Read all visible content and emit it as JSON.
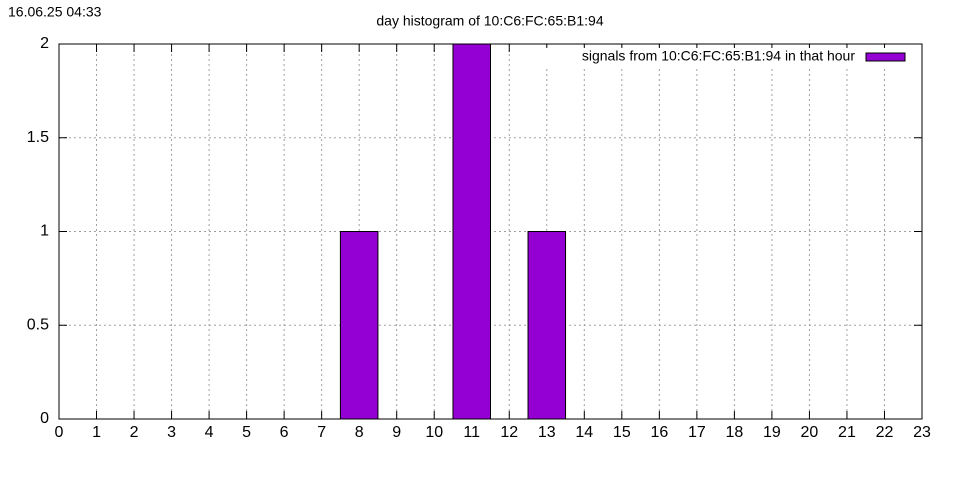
{
  "chart_data": {
    "type": "bar",
    "timestamp": "16.06.25 04:33",
    "title": "day histogram of 10:C6:FC:65:B1:94",
    "x": [
      8,
      11,
      13
    ],
    "series": [
      {
        "name": "signals from 10:C6:FC:65:B1:94 in that hour",
        "color": "#9400d3",
        "values": [
          1,
          2,
          1
        ]
      }
    ],
    "xlim": [
      0,
      23
    ],
    "xticks": [
      0,
      1,
      2,
      3,
      4,
      5,
      6,
      7,
      8,
      9,
      10,
      11,
      12,
      13,
      14,
      15,
      16,
      17,
      18,
      19,
      20,
      21,
      22,
      23
    ],
    "ylim": [
      0,
      2
    ],
    "yticks": [
      0,
      0.5,
      1,
      1.5,
      2
    ],
    "grid": true,
    "legend": "top-right"
  }
}
